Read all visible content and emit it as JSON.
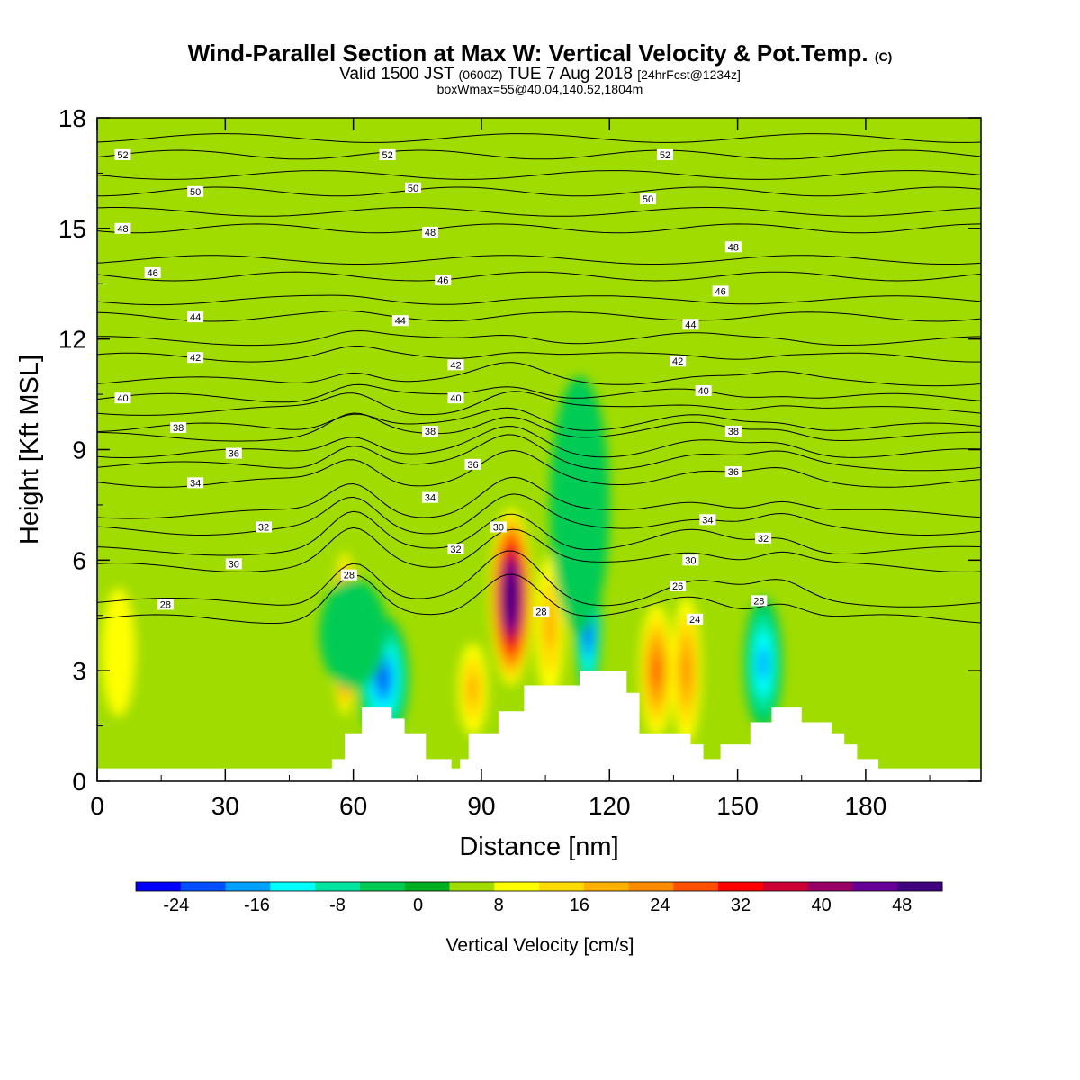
{
  "header": {
    "title": "Wind-Parallel Section at Max W: Vertical Velocity & Pot.Temp.",
    "copyright": "(C)",
    "valid_prefix": "Valid 1500 JST",
    "valid_utc": "(0600Z)",
    "valid_suffix": "TUE 7 Aug 2018",
    "forecast": "[24hrFcst@1234z]",
    "box_info": "boxWmax=55@40.04,140.52,1804m"
  },
  "chart_data": {
    "type": "heatmap",
    "xlabel": "Distance [nm]",
    "ylabel": "Height [Kft MSL]",
    "xlim": [
      0,
      207
    ],
    "ylim": [
      0,
      18
    ],
    "x_ticks": [
      0,
      30,
      60,
      90,
      120,
      150,
      180
    ],
    "y_ticks": [
      0,
      3,
      6,
      9,
      12,
      15,
      18
    ],
    "colorbar": {
      "label": "Vertical Velocity [cm/s]",
      "bounds": [
        -28,
        52
      ],
      "step": 4,
      "tick_values": [
        -24,
        -16,
        -8,
        0,
        8,
        16,
        24,
        32,
        40,
        48
      ],
      "colors": [
        "#0000ff",
        "#0050ff",
        "#00a0ff",
        "#00ffff",
        "#00e6a0",
        "#00cc55",
        "#00b020",
        "#a0dc00",
        "#ffff00",
        "#ffdc00",
        "#ffb000",
        "#ff8c00",
        "#ff5000",
        "#ff0000",
        "#cc0033",
        "#990066",
        "#660099",
        "#400080"
      ]
    },
    "terrain_profile": [
      [
        0,
        0.35
      ],
      [
        55,
        0.35
      ],
      [
        55,
        0.6
      ],
      [
        58,
        0.6
      ],
      [
        58,
        1.3
      ],
      [
        62,
        1.3
      ],
      [
        62,
        2.0
      ],
      [
        69,
        2.0
      ],
      [
        69,
        1.7
      ],
      [
        72,
        1.7
      ],
      [
        72,
        1.3
      ],
      [
        77,
        1.3
      ],
      [
        77,
        0.6
      ],
      [
        83,
        0.6
      ],
      [
        83,
        0.35
      ],
      [
        85,
        0.35
      ],
      [
        85,
        0.6
      ],
      [
        87,
        0.6
      ],
      [
        87,
        1.3
      ],
      [
        94,
        1.3
      ],
      [
        94,
        1.9
      ],
      [
        100,
        1.9
      ],
      [
        100,
        2.6
      ],
      [
        113,
        2.6
      ],
      [
        113,
        3.0
      ],
      [
        124,
        3.0
      ],
      [
        124,
        2.4
      ],
      [
        127,
        2.4
      ],
      [
        127,
        1.3
      ],
      [
        139,
        1.3
      ],
      [
        139,
        1.0
      ],
      [
        142,
        1.0
      ],
      [
        142,
        0.6
      ],
      [
        146,
        0.6
      ],
      [
        146,
        1.0
      ],
      [
        153,
        1.0
      ],
      [
        153,
        1.6
      ],
      [
        158,
        1.6
      ],
      [
        158,
        2.0
      ],
      [
        165,
        2.0
      ],
      [
        165,
        1.6
      ],
      [
        172,
        1.6
      ],
      [
        172,
        1.3
      ],
      [
        175,
        1.3
      ],
      [
        175,
        1.0
      ],
      [
        178,
        1.0
      ],
      [
        178,
        0.6
      ],
      [
        183,
        0.6
      ],
      [
        183,
        0.35
      ],
      [
        207,
        0.35
      ]
    ],
    "vertical_velocity_cells": [
      {
        "x": 58,
        "y": 4.0,
        "width": 6,
        "height": 4.4,
        "value": 40
      },
      {
        "x": 97,
        "y": 5.0,
        "width": 10,
        "height": 4.8,
        "value": 52
      },
      {
        "x": 67,
        "y": 2.8,
        "width": 12,
        "height": 3.4,
        "value": -20
      },
      {
        "x": 115,
        "y": 4.3,
        "width": 6,
        "height": 4.0,
        "value": -24
      },
      {
        "x": 131,
        "y": 3.0,
        "width": 8,
        "height": 3.6,
        "value": 20
      },
      {
        "x": 138,
        "y": 3.0,
        "width": 7,
        "height": 4.0,
        "value": 16
      },
      {
        "x": 156,
        "y": 3.2,
        "width": 9,
        "height": 3.6,
        "value": -16
      },
      {
        "x": 106,
        "y": 4.2,
        "width": 7,
        "height": 3.8,
        "value": 12
      },
      {
        "x": 113,
        "y": 7.5,
        "width": 14,
        "height": 7,
        "value": -4
      },
      {
        "x": 60,
        "y": 4.0,
        "width": 16,
        "height": 3.0,
        "value": -4
      },
      {
        "x": 88,
        "y": 2.5,
        "width": 7,
        "height": 2.5,
        "value": 12
      },
      {
        "x": 5,
        "y": 3.5,
        "width": 8,
        "height": 3.5,
        "value": 4
      }
    ],
    "potential_temperature_levels": [
      {
        "label": "28",
        "x": 16,
        "base": 4.4
      },
      {
        "label": "30",
        "x": 32,
        "base": 5.8
      },
      {
        "label": "32",
        "x": 39,
        "base": 6.8
      },
      {
        "label": "34",
        "x": 23,
        "base": 8.1
      },
      {
        "label": "36",
        "x": 32,
        "base": 8.9
      },
      {
        "label": "38",
        "x": 19,
        "base": 9.6
      },
      {
        "label": "40",
        "x": 6,
        "base": 10.4
      },
      {
        "label": "42",
        "x": 23,
        "base": 11.5
      },
      {
        "label": "44",
        "x": 23,
        "base": 12.6
      },
      {
        "label": "46",
        "x": 13,
        "base": 13.7
      },
      {
        "label": "48",
        "x": 6,
        "base": 15.0
      },
      {
        "label": "50",
        "x": 23,
        "base": 16.0
      },
      {
        "label": "52",
        "x": 6,
        "base": 17.0
      }
    ],
    "contour_labels": [
      {
        "text": "52",
        "x": 6,
        "y": 17.0
      },
      {
        "text": "52",
        "x": 68,
        "y": 17.0
      },
      {
        "text": "52",
        "x": 133,
        "y": 17.0
      },
      {
        "text": "50",
        "x": 23,
        "y": 16.0
      },
      {
        "text": "50",
        "x": 74,
        "y": 16.1
      },
      {
        "text": "50",
        "x": 129,
        "y": 15.8
      },
      {
        "text": "48",
        "x": 6,
        "y": 15.0
      },
      {
        "text": "48",
        "x": 78,
        "y": 14.9
      },
      {
        "text": "48",
        "x": 149,
        "y": 14.5
      },
      {
        "text": "46",
        "x": 13,
        "y": 13.8
      },
      {
        "text": "46",
        "x": 81,
        "y": 13.6
      },
      {
        "text": "46",
        "x": 146,
        "y": 13.3
      },
      {
        "text": "44",
        "x": 23,
        "y": 12.6
      },
      {
        "text": "44",
        "x": 71,
        "y": 12.5
      },
      {
        "text": "44",
        "x": 139,
        "y": 12.4
      },
      {
        "text": "42",
        "x": 23,
        "y": 11.5
      },
      {
        "text": "42",
        "x": 84,
        "y": 11.3
      },
      {
        "text": "42",
        "x": 136,
        "y": 11.4
      },
      {
        "text": "40",
        "x": 6,
        "y": 10.4
      },
      {
        "text": "40",
        "x": 84,
        "y": 10.4
      },
      {
        "text": "40",
        "x": 142,
        "y": 10.6
      },
      {
        "text": "38",
        "x": 19,
        "y": 9.6
      },
      {
        "text": "38",
        "x": 78,
        "y": 9.5
      },
      {
        "text": "38",
        "x": 149,
        "y": 9.5
      },
      {
        "text": "36",
        "x": 32,
        "y": 8.9
      },
      {
        "text": "36",
        "x": 88,
        "y": 8.6
      },
      {
        "text": "36",
        "x": 149,
        "y": 8.4
      },
      {
        "text": "34",
        "x": 23,
        "y": 8.1
      },
      {
        "text": "34",
        "x": 78,
        "y": 7.7
      },
      {
        "text": "34",
        "x": 143,
        "y": 7.1
      },
      {
        "text": "32",
        "x": 39,
        "y": 6.9
      },
      {
        "text": "32",
        "x": 84,
        "y": 6.3
      },
      {
        "text": "32",
        "x": 156,
        "y": 6.6
      },
      {
        "text": "30",
        "x": 32,
        "y": 5.9
      },
      {
        "text": "30",
        "x": 94,
        "y": 6.9
      },
      {
        "text": "30",
        "x": 139,
        "y": 6.0
      },
      {
        "text": "28",
        "x": 16,
        "y": 4.8
      },
      {
        "text": "28",
        "x": 59,
        "y": 5.6
      },
      {
        "text": "28",
        "x": 104,
        "y": 4.6
      },
      {
        "text": "28",
        "x": 155,
        "y": 4.9
      },
      {
        "text": "26",
        "x": 136,
        "y": 5.3
      },
      {
        "text": "24",
        "x": 140,
        "y": 4.4
      }
    ]
  }
}
